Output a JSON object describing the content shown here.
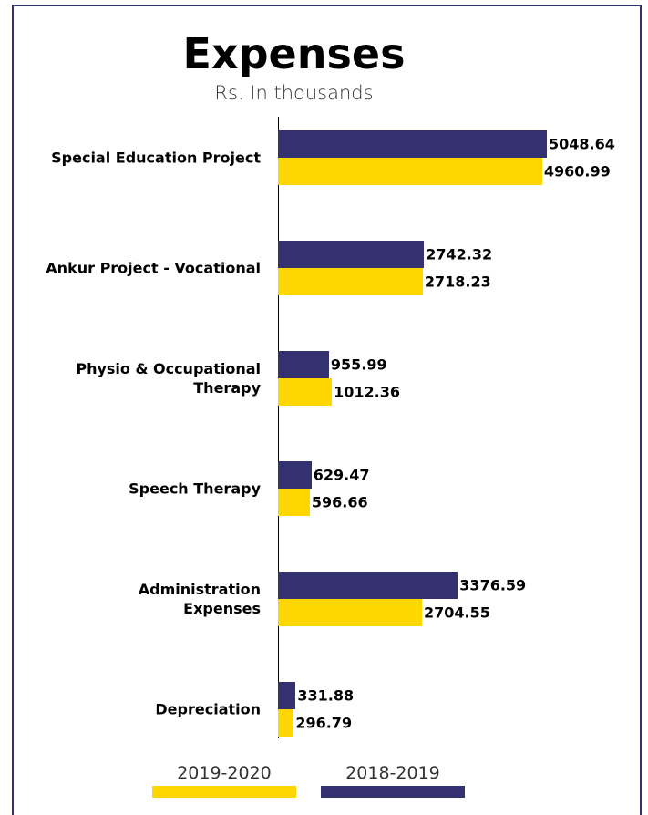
{
  "chart_data": {
    "type": "bar",
    "orientation": "horizontal",
    "title": "Expenses",
    "subtitle": "Rs. In thousands",
    "categories": [
      "Special Education Project",
      "Ankur Project - Vocational",
      "Physio & Occupational\nTherapy",
      "Speech Therapy",
      "Administration\nExpenses",
      "Depreciation"
    ],
    "series": [
      {
        "name": "2019-2020",
        "color": "#ffd600",
        "values": [
          4960.99,
          2718.23,
          1012.36,
          596.66,
          2704.55,
          296.79
        ]
      },
      {
        "name": "2018-2019",
        "color": "#33316f",
        "values": [
          5048.64,
          2742.32,
          955.99,
          629.47,
          3376.59,
          331.88
        ]
      }
    ]
  }
}
